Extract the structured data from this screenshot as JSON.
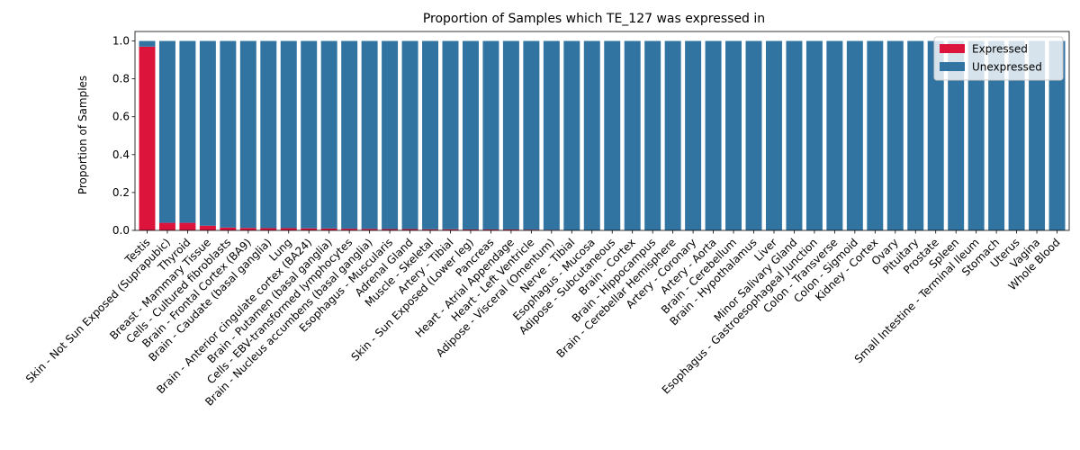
{
  "chart_data": {
    "type": "bar",
    "stacked": true,
    "title": "Proportion of Samples which TE_127 was expressed in",
    "xlabel": "",
    "ylabel": "Proportion of Samples",
    "ylim": [
      0,
      1.05
    ],
    "yticks": [
      "0.0",
      "0.2",
      "0.4",
      "0.6",
      "0.8",
      "1.0"
    ],
    "grid": false,
    "legend_position": "top-right",
    "categories": [
      "Testis",
      "Skin - Not Sun Exposed (Suprapubic)",
      "Thyroid",
      "Breast - Mammary Tissue",
      "Cells - Cultured fibroblasts",
      "Brain - Frontal Cortex (BA9)",
      "Brain - Caudate (basal ganglia)",
      "Lung",
      "Brain - Anterior cingulate cortex (BA24)",
      "Brain - Putamen (basal ganglia)",
      "Cells - EBV-transformed lymphocytes",
      "Brain - Nucleus accumbens (basal ganglia)",
      "Esophagus - Muscularis",
      "Adrenal Gland",
      "Muscle - Skeletal",
      "Artery - Tibial",
      "Skin - Sun Exposed (Lower leg)",
      "Pancreas",
      "Heart - Atrial Appendage",
      "Heart - Left Ventricle",
      "Adipose - Visceral (Omentum)",
      "Nerve - Tibial",
      "Esophagus - Mucosa",
      "Adipose - Subcutaneous",
      "Brain - Cortex",
      "Brain - Hippocampus",
      "Brain - Cerebellar Hemisphere",
      "Artery - Coronary",
      "Artery - Aorta",
      "Brain - Cerebellum",
      "Brain - Hypothalamus",
      "Liver",
      "Minor Salivary Gland",
      "Esophagus - Gastroesophageal Junction",
      "Colon - Transverse",
      "Colon - Sigmoid",
      "Kidney - Cortex",
      "Ovary",
      "Pituitary",
      "Prostate",
      "Spleen",
      "Small Intestine - Terminal Ileum",
      "Stomach",
      "Uterus",
      "Vagina",
      "Whole Blood"
    ],
    "series": [
      {
        "name": "Expressed",
        "color": "#dc143c",
        "values": [
          0.97,
          0.04,
          0.04,
          0.025,
          0.015,
          0.013,
          0.012,
          0.012,
          0.011,
          0.01,
          0.009,
          0.008,
          0.007,
          0.007,
          0.006,
          0.006,
          0.005,
          0.005,
          0.005,
          0.004,
          0.003,
          0,
          0,
          0,
          0,
          0,
          0,
          0,
          0,
          0,
          0,
          0,
          0,
          0,
          0,
          0,
          0,
          0,
          0,
          0,
          0,
          0,
          0,
          0,
          0,
          0
        ]
      },
      {
        "name": "Unexpressed",
        "color": "#3274a1",
        "values": [
          0.03,
          0.96,
          0.96,
          0.975,
          0.985,
          0.987,
          0.988,
          0.988,
          0.989,
          0.99,
          0.991,
          0.992,
          0.993,
          0.993,
          0.994,
          0.994,
          0.995,
          0.995,
          0.995,
          0.996,
          0.997,
          1,
          1,
          1,
          1,
          1,
          1,
          1,
          1,
          1,
          1,
          1,
          1,
          1,
          1,
          1,
          1,
          1,
          1,
          1,
          1,
          1,
          1,
          1,
          1,
          1
        ]
      }
    ]
  }
}
